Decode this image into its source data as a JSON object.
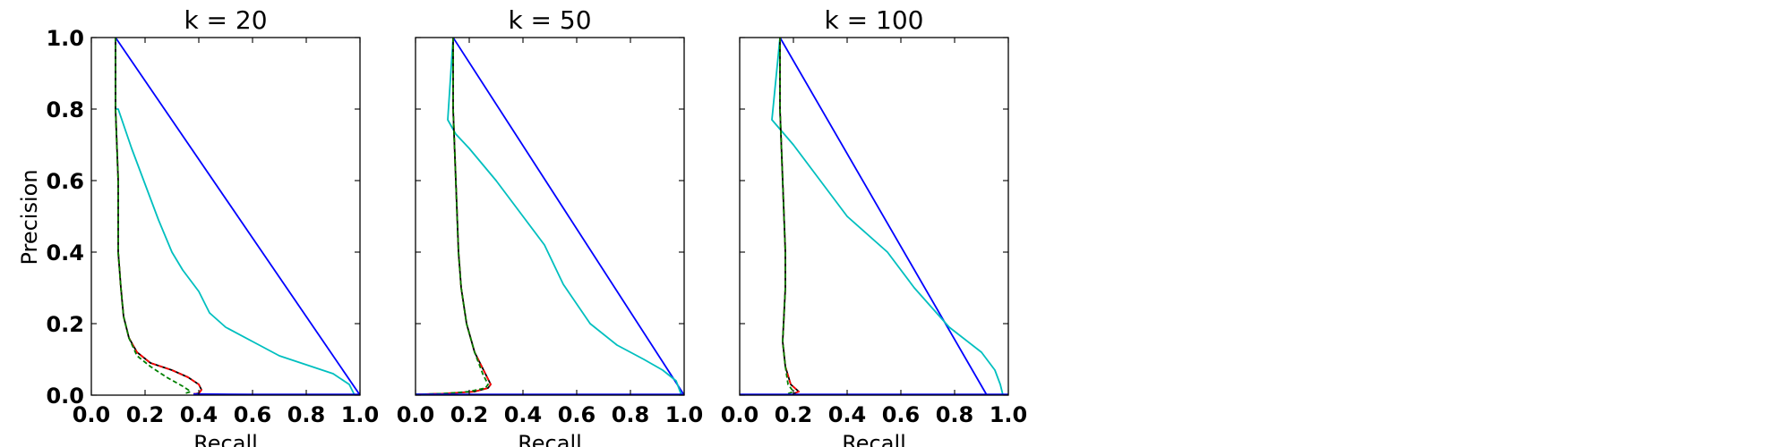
{
  "figure": {
    "ylabel": "Precision",
    "xlabel": "Recall"
  },
  "chart_data": [
    {
      "type": "line",
      "title": "k = 20",
      "xlabel": "Recall",
      "ylabel": "Precision",
      "xlim": [
        0.0,
        1.0
      ],
      "ylim": [
        0.0,
        1.0
      ],
      "xticks": [
        "0.0",
        "0.2",
        "0.4",
        "0.6",
        "0.8",
        "1.0"
      ],
      "yticks": [
        "0.0",
        "0.2",
        "0.4",
        "0.6",
        "0.8",
        "1.0"
      ],
      "grid": false,
      "series": [
        {
          "color": "#0000ff",
          "x": [
            0.09,
            1.0
          ],
          "y": [
            1.0,
            0.0
          ]
        },
        {
          "color": "#00bfbf",
          "x": [
            0.09,
            0.09,
            0.1,
            0.15,
            0.2,
            0.25,
            0.3,
            0.34,
            0.4,
            0.44,
            0.5,
            0.6,
            0.7,
            0.8,
            0.9,
            0.96,
            0.98
          ],
          "y": [
            1.0,
            0.8,
            0.8,
            0.69,
            0.59,
            0.49,
            0.4,
            0.35,
            0.29,
            0.23,
            0.19,
            0.15,
            0.11,
            0.085,
            0.06,
            0.03,
            0.0
          ]
        },
        {
          "color": "#000000",
          "x": [
            0.09,
            0.09,
            0.1,
            0.1,
            0.11,
            0.12,
            0.14,
            0.17,
            0.22,
            0.3,
            0.36,
            0.4,
            0.41,
            0.4,
            0.38
          ],
          "y": [
            1.0,
            0.8,
            0.6,
            0.4,
            0.3,
            0.22,
            0.16,
            0.12,
            0.09,
            0.07,
            0.05,
            0.03,
            0.015,
            0.005,
            0.003
          ]
        },
        {
          "color": "#ff0000",
          "x": [
            0.09,
            0.09,
            0.1,
            0.1,
            0.11,
            0.12,
            0.14,
            0.17,
            0.22,
            0.3,
            0.36,
            0.4,
            0.41,
            0.4,
            0.38
          ],
          "y": [
            1.0,
            0.8,
            0.6,
            0.4,
            0.3,
            0.22,
            0.16,
            0.12,
            0.09,
            0.07,
            0.05,
            0.03,
            0.015,
            0.005,
            0.003
          ]
        },
        {
          "color": "#008000",
          "x": [
            0.09,
            0.09,
            0.1,
            0.1,
            0.11,
            0.12,
            0.14,
            0.17,
            0.22,
            0.28,
            0.34,
            0.37,
            0.35
          ],
          "y": [
            1.0,
            0.8,
            0.6,
            0.4,
            0.3,
            0.22,
            0.16,
            0.11,
            0.08,
            0.05,
            0.025,
            0.01,
            0.005
          ]
        },
        {
          "color": "#0000ff",
          "x": [
            0.38,
            0.42,
            0.6,
            0.8,
            1.0
          ],
          "y": [
            0.003,
            0.003,
            0.002,
            0.002,
            0.002
          ]
        }
      ]
    },
    {
      "type": "line",
      "title": "k = 50",
      "xlabel": "Recall",
      "ylabel": "",
      "xlim": [
        0.0,
        1.0
      ],
      "ylim": [
        0.0,
        1.0
      ],
      "xticks": [
        "0.0",
        "0.2",
        "0.4",
        "0.6",
        "0.8",
        "1.0"
      ],
      "yticks": [],
      "grid": false,
      "series": [
        {
          "color": "#0000ff",
          "x": [
            0.14,
            1.0
          ],
          "y": [
            1.0,
            0.0
          ]
        },
        {
          "color": "#00bfbf",
          "x": [
            0.14,
            0.12,
            0.15,
            0.2,
            0.3,
            0.4,
            0.48,
            0.55,
            0.65,
            0.75,
            0.85,
            0.92,
            0.97,
            0.99
          ],
          "y": [
            1.0,
            0.77,
            0.73,
            0.69,
            0.6,
            0.5,
            0.42,
            0.31,
            0.2,
            0.14,
            0.1,
            0.07,
            0.04,
            0.0
          ]
        },
        {
          "color": "#000000",
          "x": [
            0.14,
            0.14,
            0.15,
            0.16,
            0.17,
            0.19,
            0.22,
            0.26,
            0.28,
            0.27,
            0.22,
            0.1,
            0.0
          ],
          "y": [
            1.0,
            0.8,
            0.6,
            0.4,
            0.3,
            0.2,
            0.12,
            0.06,
            0.03,
            0.02,
            0.01,
            0.004,
            0.002
          ]
        },
        {
          "color": "#ff0000",
          "x": [
            0.14,
            0.14,
            0.15,
            0.16,
            0.17,
            0.19,
            0.22,
            0.26,
            0.28,
            0.27,
            0.22,
            0.1,
            0.0
          ],
          "y": [
            1.0,
            0.8,
            0.6,
            0.4,
            0.3,
            0.2,
            0.12,
            0.06,
            0.03,
            0.02,
            0.01,
            0.004,
            0.002
          ]
        },
        {
          "color": "#008000",
          "x": [
            0.14,
            0.14,
            0.15,
            0.16,
            0.17,
            0.19,
            0.22,
            0.25,
            0.27,
            0.26,
            0.2,
            0.1,
            0.0
          ],
          "y": [
            1.0,
            0.8,
            0.6,
            0.4,
            0.3,
            0.2,
            0.12,
            0.06,
            0.03,
            0.02,
            0.01,
            0.004,
            0.002
          ]
        },
        {
          "color": "#0000ff",
          "x": [
            0.0,
            0.5,
            1.0
          ],
          "y": [
            0.002,
            0.002,
            0.002
          ]
        }
      ]
    },
    {
      "type": "line",
      "title": "k = 100",
      "xlabel": "Recall",
      "ylabel": "",
      "xlim": [
        0.0,
        1.0
      ],
      "ylim": [
        0.0,
        1.0
      ],
      "xticks": [
        "0.0",
        "0.2",
        "0.4",
        "0.6",
        "0.8",
        "1.0"
      ],
      "yticks": [],
      "grid": false,
      "series": [
        {
          "color": "#0000ff",
          "x": [
            0.15,
            0.92
          ],
          "y": [
            1.0,
            0.0
          ]
        },
        {
          "color": "#00bfbf",
          "x": [
            0.15,
            0.12,
            0.2,
            0.3,
            0.4,
            0.55,
            0.65,
            0.78,
            0.9,
            0.95,
            0.97,
            0.98
          ],
          "y": [
            1.0,
            0.77,
            0.7,
            0.6,
            0.5,
            0.4,
            0.3,
            0.19,
            0.12,
            0.07,
            0.03,
            0.0
          ]
        },
        {
          "color": "#000000",
          "x": [
            0.15,
            0.15,
            0.16,
            0.17,
            0.17,
            0.16,
            0.17,
            0.19,
            0.22,
            0.2
          ],
          "y": [
            1.0,
            0.8,
            0.6,
            0.4,
            0.3,
            0.15,
            0.08,
            0.03,
            0.01,
            0.004
          ]
        },
        {
          "color": "#ff0000",
          "x": [
            0.15,
            0.15,
            0.16,
            0.17,
            0.17,
            0.16,
            0.17,
            0.19,
            0.22,
            0.2
          ],
          "y": [
            1.0,
            0.8,
            0.6,
            0.4,
            0.3,
            0.15,
            0.08,
            0.03,
            0.01,
            0.004
          ]
        },
        {
          "color": "#008000",
          "x": [
            0.15,
            0.15,
            0.16,
            0.17,
            0.17,
            0.16,
            0.17,
            0.18,
            0.2,
            0.18
          ],
          "y": [
            1.0,
            0.8,
            0.6,
            0.4,
            0.3,
            0.15,
            0.08,
            0.03,
            0.01,
            0.004
          ]
        },
        {
          "color": "#0000ff",
          "x": [
            0.0,
            0.5,
            1.0
          ],
          "y": [
            0.002,
            0.002,
            0.002
          ]
        }
      ]
    }
  ]
}
